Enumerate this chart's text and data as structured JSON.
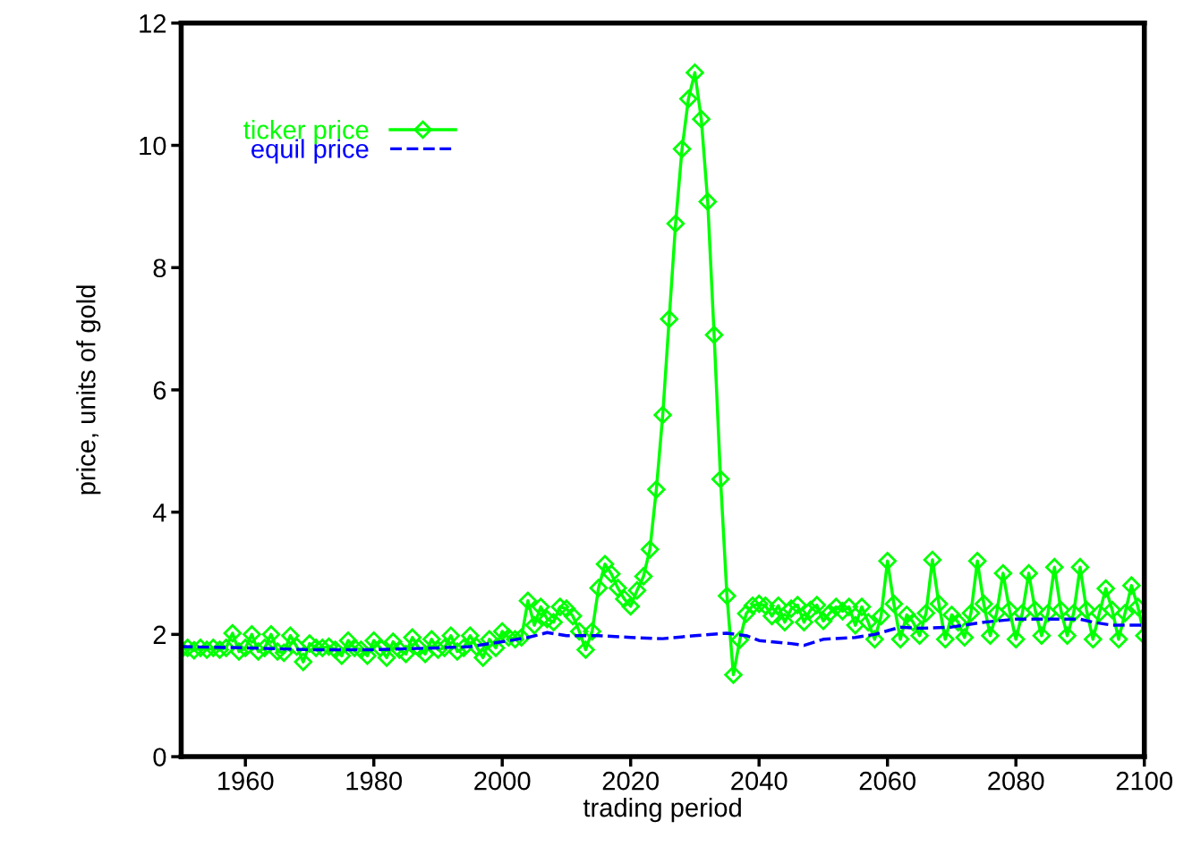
{
  "chart_data": {
    "type": "line",
    "xlabel": "trading period",
    "ylabel": "price, units of gold",
    "xlim": [
      1950,
      2100
    ],
    "xticks": [
      1960,
      1980,
      2000,
      2020,
      2040,
      2060,
      2080,
      2100
    ],
    "ylim": [
      0,
      12
    ],
    "yticks": [
      0,
      2,
      4,
      6,
      8,
      10,
      12
    ],
    "grid": false,
    "legend": "top left",
    "series": [
      {
        "name": "ticker price",
        "color": "#00ff00",
        "marker": "diamond",
        "line_style": "solid",
        "x": [
          1950,
          1951,
          1952,
          1953,
          1954,
          1955,
          1956,
          1957,
          1958,
          1959,
          1960,
          1961,
          1962,
          1963,
          1964,
          1965,
          1966,
          1967,
          1968,
          1969,
          1970,
          1971,
          1972,
          1973,
          1974,
          1975,
          1976,
          1977,
          1978,
          1979,
          1980,
          1981,
          1982,
          1983,
          1984,
          1985,
          1986,
          1987,
          1988,
          1989,
          1990,
          1991,
          1992,
          1993,
          1994,
          1995,
          1996,
          1997,
          1998,
          1999,
          2000,
          2001,
          2002,
          2003,
          2004,
          2005,
          2006,
          2007,
          2008,
          2009,
          2010,
          2011,
          2012,
          2013,
          2014,
          2015,
          2016,
          2017,
          2018,
          2019,
          2020,
          2021,
          2022,
          2023,
          2024,
          2025,
          2026,
          2027,
          2028,
          2029,
          2030,
          2031,
          2032,
          2033,
          2034,
          2035,
          2036,
          2037,
          2038,
          2039,
          2040,
          2041,
          2042,
          2043,
          2044,
          2045,
          2046,
          2047,
          2048,
          2049,
          2050,
          2051,
          2052,
          2053,
          2054,
          2055,
          2056,
          2057,
          2058,
          2059,
          2060,
          2061,
          2062,
          2063,
          2064,
          2065,
          2066,
          2067,
          2068,
          2069,
          2070,
          2071,
          2072,
          2073,
          2074,
          2075,
          2076,
          2077,
          2078,
          2079,
          2080,
          2081,
          2082,
          2083,
          2084,
          2085,
          2086,
          2087,
          2088,
          2089,
          2090,
          2091,
          2092,
          2093,
          2094,
          2095,
          2096,
          2097,
          2098,
          2099,
          2100
        ],
        "values": [
          1.75,
          1.78,
          1.74,
          1.78,
          1.75,
          1.78,
          1.75,
          1.78,
          2.02,
          1.72,
          1.78,
          2.0,
          1.72,
          1.78,
          2.0,
          1.72,
          1.7,
          1.98,
          1.8,
          1.55,
          1.85,
          1.78,
          1.78,
          1.8,
          1.75,
          1.65,
          1.9,
          1.78,
          1.75,
          1.65,
          1.9,
          1.78,
          1.62,
          1.88,
          1.75,
          1.68,
          1.95,
          1.78,
          1.68,
          1.92,
          1.75,
          1.78,
          1.98,
          1.72,
          1.78,
          1.98,
          1.8,
          1.62,
          1.92,
          1.78,
          2.05,
          1.95,
          1.92,
          1.95,
          2.55,
          2.15,
          2.45,
          2.25,
          2.2,
          2.45,
          2.42,
          2.3,
          2.05,
          1.75,
          2.05,
          2.76,
          3.15,
          2.99,
          2.76,
          2.58,
          2.46,
          2.72,
          2.95,
          3.39,
          4.37,
          5.59,
          7.16,
          8.72,
          9.94,
          10.76,
          11.19,
          10.43,
          9.08,
          6.9,
          4.54,
          2.63,
          1.34,
          1.91,
          2.34,
          2.47,
          2.5,
          2.47,
          2.3,
          2.47,
          2.2,
          2.42,
          2.48,
          2.2,
          2.4,
          2.48,
          2.22,
          2.35,
          2.45,
          2.38,
          2.45,
          2.15,
          2.45,
          2.2,
          1.92,
          2.3,
          3.2,
          2.5,
          1.92,
          2.32,
          2.2,
          1.98,
          2.35,
          3.22,
          2.5,
          1.92,
          2.32,
          2.2,
          1.95,
          2.35,
          3.2,
          2.5,
          1.98,
          2.35,
          3.0,
          2.4,
          1.92,
          2.35,
          3.0,
          2.4,
          1.98,
          2.35,
          3.1,
          2.4,
          1.98,
          2.35,
          3.1,
          2.4,
          1.92,
          2.35,
          2.75,
          2.4,
          1.92,
          2.35,
          2.8,
          2.45,
          1.98
        ]
      },
      {
        "name": "equil price",
        "color": "#0000ff",
        "marker": "none",
        "line_style": "dashed",
        "x": [
          1950,
          1960,
          1970,
          1980,
          1990,
          1995,
          2000,
          2004,
          2007,
          2010,
          2015,
          2020,
          2025,
          2030,
          2035,
          2038,
          2040,
          2045,
          2047,
          2050,
          2055,
          2058,
          2062,
          2065,
          2070,
          2075,
          2080,
          2085,
          2090,
          2092,
          2095,
          2100
        ],
        "values": [
          1.8,
          1.78,
          1.75,
          1.75,
          1.78,
          1.8,
          1.88,
          1.95,
          2.03,
          1.98,
          1.98,
          1.95,
          1.93,
          1.98,
          2.02,
          1.98,
          1.9,
          1.85,
          1.82,
          1.92,
          1.95,
          2.0,
          2.12,
          2.1,
          2.12,
          2.2,
          2.25,
          2.25,
          2.25,
          2.2,
          2.15,
          2.15
        ]
      }
    ]
  }
}
